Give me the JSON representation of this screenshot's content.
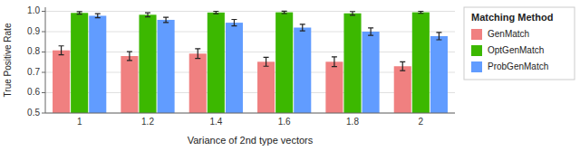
{
  "chart_data": {
    "type": "bar",
    "categories": [
      "1",
      "1.2",
      "1.4",
      "1.6",
      "1.8",
      "2"
    ],
    "series": [
      {
        "name": "GenMatch",
        "color": "#F08080",
        "values": [
          0.808,
          0.78,
          0.792,
          0.752,
          0.752,
          0.73
        ],
        "errors": [
          0.022,
          0.022,
          0.024,
          0.022,
          0.024,
          0.022
        ]
      },
      {
        "name": "OptGenMatch",
        "color": "#3CB800",
        "values": [
          0.992,
          0.983,
          0.994,
          0.995,
          0.99,
          0.995
        ],
        "errors": [
          0.006,
          0.01,
          0.006,
          0.006,
          0.009,
          0.005
        ]
      },
      {
        "name": "ProbGenMatch",
        "color": "#619CFF",
        "values": [
          0.978,
          0.958,
          0.944,
          0.92,
          0.9,
          0.878
        ],
        "errors": [
          0.01,
          0.013,
          0.016,
          0.016,
          0.018,
          0.018
        ]
      }
    ],
    "ylabel": "True Positive Rate",
    "xlabel": "Variance of 2nd type vectors",
    "legend_title": "Matching Method",
    "ylim": [
      0.5,
      1.02
    ],
    "yticks": [
      0.5,
      0.6,
      0.7,
      0.8,
      0.9,
      {
        "value": 1.0,
        "label": "1.0"
      }
    ],
    "grid": true,
    "legend": "right"
  }
}
